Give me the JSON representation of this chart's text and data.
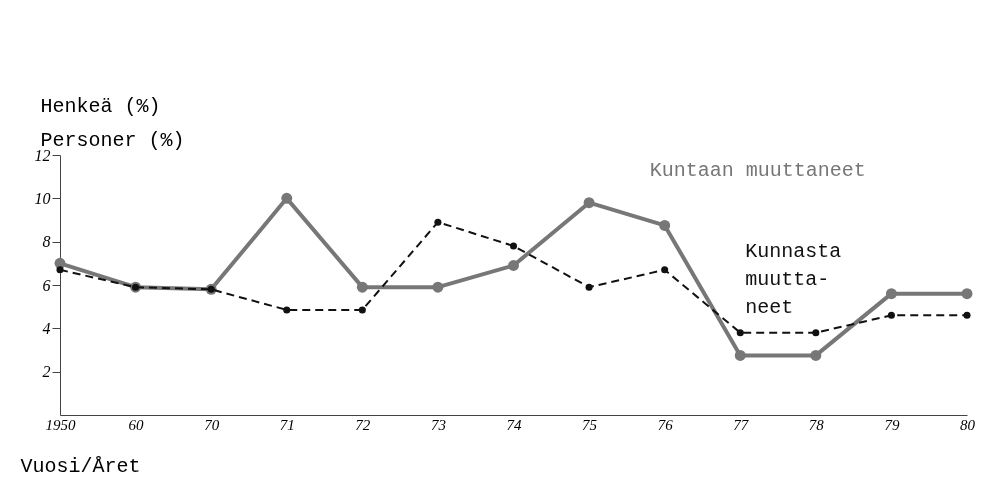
{
  "chart_data": {
    "type": "line",
    "ylabel": "Henkeä (%)\nPersoner (%)",
    "xlabel": "Vuosi/Året",
    "categories": [
      "1950",
      "60",
      "70",
      "71",
      "72",
      "73",
      "74",
      "75",
      "76",
      "77",
      "78",
      "79",
      "80"
    ],
    "series": [
      {
        "name": "Kuntaan muuttaneet",
        "color": "#777777",
        "line_style": "solid",
        "values": [
          7.0,
          5.9,
          5.8,
          10.0,
          5.9,
          5.9,
          6.9,
          9.8,
          8.75,
          2.75,
          2.75,
          5.6,
          5.6
        ]
      },
      {
        "name": "Kunnasta\nmuutta-\nneet",
        "color": "#111111",
        "line_style": "dashed",
        "values": [
          6.7,
          5.9,
          5.8,
          4.85,
          4.85,
          8.9,
          7.8,
          5.9,
          6.7,
          3.8,
          3.8,
          4.6,
          4.6
        ]
      }
    ],
    "ylim": [
      0,
      12
    ],
    "yticks": [
      2,
      4,
      6,
      8,
      10,
      12
    ],
    "marker": "circle",
    "grid": false
  }
}
